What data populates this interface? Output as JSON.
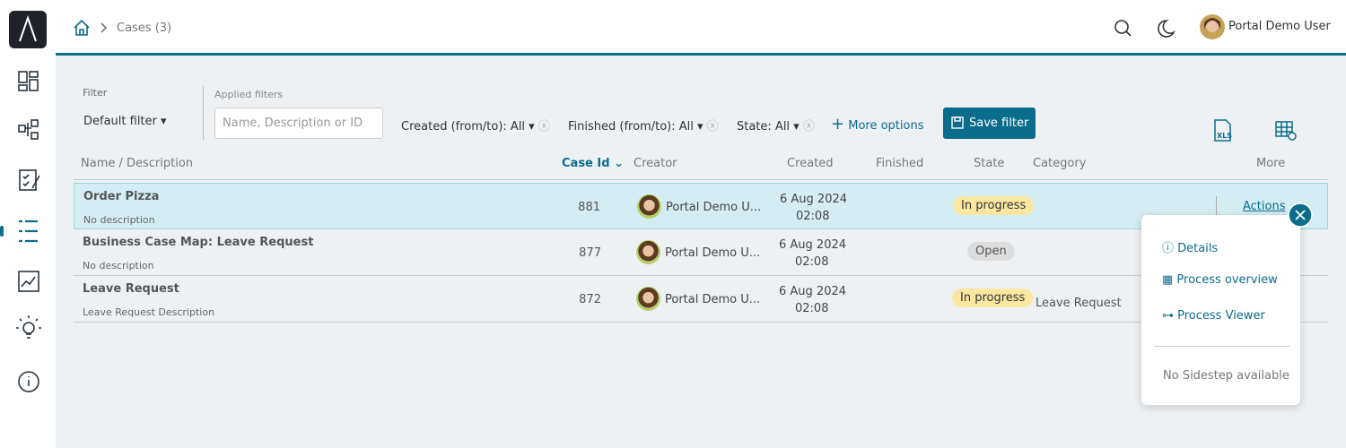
{
  "header": {
    "breadcrumb": "Cases (3)",
    "user": "Portal Demo User"
  },
  "filters": {
    "filter_label": "Filter",
    "default_filter": "Default filter",
    "applied_label": "Applied filters",
    "search_placeholder": "Name, Description or ID",
    "created": "Created (from/to): All",
    "finished": "Finished (from/to): All",
    "state": "State: All",
    "more_options": "More options",
    "save": "Save filter"
  },
  "table": {
    "columns": [
      "Name / Description",
      "Case Id",
      "Creator",
      "Created",
      "Finished",
      "State",
      "Category",
      "More"
    ],
    "actions": "Actions",
    "rows": [
      {
        "name": "Order Pizza",
        "description": "No description",
        "id": 881,
        "creator": "Portal Demo U...",
        "created_date": "6 Aug 2024",
        "created_time": "02:08",
        "state": "In progress"
      },
      {
        "name": "Business Case Map: Leave Request",
        "description": "No description",
        "id": 877,
        "creator": "Portal Demo U...",
        "created_date": "6 Aug 2024",
        "created_time": "02:08",
        "state": "Open"
      },
      {
        "name": "Leave Request",
        "description": "Leave Request Description",
        "id": 872,
        "creator": "Portal Demo U...",
        "created_date": "6 Aug 2024",
        "created_time": "02:08",
        "state": "In progress",
        "category": "Leave Request"
      }
    ]
  },
  "menu": {
    "items": [
      "Details",
      "Process overview",
      "Process Viewer"
    ],
    "note": "No Sidestep available"
  }
}
